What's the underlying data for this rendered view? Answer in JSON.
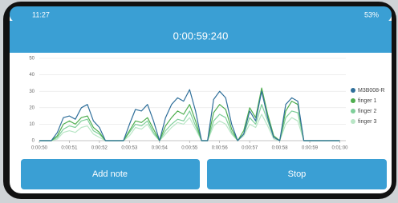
{
  "status_bar": {
    "time": "11:27",
    "battery": "53%"
  },
  "header": {
    "timer": "0:00:59:240"
  },
  "buttons": [
    {
      "label": "Add note"
    },
    {
      "label": "Stop"
    }
  ],
  "chart_data": {
    "type": "line",
    "legend": "right",
    "grid": true,
    "x": [
      50,
      50.2,
      50.4,
      50.6,
      50.8,
      51,
      51.2,
      51.4,
      51.6,
      51.8,
      52,
      52.2,
      52.4,
      52.6,
      52.8,
      53,
      53.2,
      53.4,
      53.6,
      53.8,
      54,
      54.2,
      54.4,
      54.6,
      54.8,
      55,
      55.2,
      55.4,
      55.6,
      55.8,
      56,
      56.2,
      56.4,
      56.6,
      56.8,
      57,
      57.2,
      57.4,
      57.6,
      57.8,
      58,
      58.2,
      58.4,
      58.6,
      58.8,
      59,
      59.2,
      59.4,
      59.6,
      59.8,
      60
    ],
    "xlim": [
      50,
      60.2
    ],
    "xticks": [
      {
        "value": 50,
        "label": "0:00:50"
      },
      {
        "value": 51,
        "label": "0:00:51"
      },
      {
        "value": 52,
        "label": "0:00:52"
      },
      {
        "value": 53,
        "label": "0:00:53"
      },
      {
        "value": 54,
        "label": "0:00:54"
      },
      {
        "value": 55,
        "label": "0:00:55"
      },
      {
        "value": 56,
        "label": "0:00:56"
      },
      {
        "value": 57,
        "label": "0:00:57"
      },
      {
        "value": 58,
        "label": "0:00:58"
      },
      {
        "value": 59,
        "label": "0:00:59"
      },
      {
        "value": 60,
        "label": "0:01:00"
      }
    ],
    "ylim": [
      0,
      50
    ],
    "yticks": [
      0,
      10,
      20,
      30,
      40,
      50
    ],
    "series": [
      {
        "name": "M3B008-R",
        "color": "#2f6f9a",
        "values": [
          0,
          0,
          0,
          5,
          14,
          15,
          13,
          20,
          22,
          12,
          8,
          0,
          0,
          0,
          0,
          10,
          19,
          18,
          22,
          12,
          0,
          14,
          22,
          26,
          24,
          31,
          18,
          0,
          0,
          25,
          30,
          26,
          10,
          0,
          4,
          18,
          12,
          30,
          14,
          2,
          0,
          22,
          26,
          24,
          0,
          0,
          0,
          0,
          0,
          0,
          0
        ]
      },
      {
        "name": "finger 1",
        "color": "#4fae4f",
        "values": [
          0,
          0,
          0,
          3,
          10,
          12,
          10,
          14,
          15,
          8,
          5,
          0,
          0,
          0,
          0,
          6,
          12,
          11,
          14,
          7,
          0,
          9,
          14,
          18,
          16,
          22,
          12,
          0,
          0,
          17,
          22,
          19,
          7,
          0,
          6,
          20,
          14,
          32,
          16,
          3,
          0,
          18,
          24,
          22,
          0,
          0,
          0,
          0,
          0,
          0,
          0
        ]
      },
      {
        "name": "finger 2",
        "color": "#7fcf9a",
        "values": [
          0,
          0,
          0,
          2,
          7,
          9,
          8,
          12,
          13,
          6,
          4,
          0,
          0,
          0,
          0,
          5,
          10,
          9,
          12,
          5,
          0,
          6,
          10,
          13,
          12,
          18,
          9,
          0,
          0,
          12,
          16,
          14,
          5,
          0,
          4,
          14,
          10,
          22,
          12,
          2,
          0,
          14,
          18,
          17,
          0,
          0,
          0,
          0,
          0,
          0,
          0
        ]
      },
      {
        "name": "finger 3",
        "color": "#b9e6c6",
        "values": [
          0,
          0,
          0,
          1,
          5,
          6,
          5,
          8,
          9,
          4,
          2,
          0,
          0,
          0,
          0,
          3,
          8,
          7,
          10,
          4,
          0,
          4,
          8,
          11,
          10,
          14,
          7,
          0,
          0,
          9,
          12,
          10,
          4,
          0,
          3,
          10,
          8,
          16,
          9,
          1,
          0,
          10,
          14,
          12,
          0,
          0,
          0,
          0,
          0,
          0,
          0
        ]
      }
    ]
  }
}
